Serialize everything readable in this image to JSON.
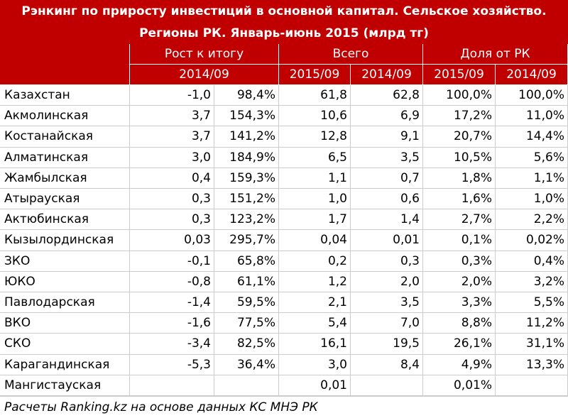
{
  "header": {
    "title_lines": [
      "Рэнкинг по приросту инвестиций в основной капитал. Сельское хозяйство.",
      "Регионы РК. Январь-июнь 2015 (млрд тг)"
    ],
    "groups": [
      "Рост к итогу",
      "Всего",
      "Доля от РК"
    ],
    "periods": [
      "2014/09",
      "2015/09",
      "2014/09",
      "2015/09",
      "2014/09"
    ]
  },
  "table": {
    "rows": [
      [
        "Казахстан",
        "-1,0",
        "98,4%",
        "61,8",
        "62,8",
        "100,0%",
        "100,0%"
      ],
      [
        "Акмолинская",
        "3,7",
        "154,3%",
        "10,6",
        "6,9",
        "17,2%",
        "11,0%"
      ],
      [
        "Костанайская",
        "3,7",
        "141,2%",
        "12,8",
        "9,1",
        "20,7%",
        "14,4%"
      ],
      [
        "Алматинская",
        "3,0",
        "184,9%",
        "6,5",
        "3,5",
        "10,5%",
        "5,6%"
      ],
      [
        "Жамбылская",
        "0,4",
        "159,3%",
        "1,1",
        "0,7",
        "1,8%",
        "1,1%"
      ],
      [
        "Атырауская",
        "0,3",
        "151,2%",
        "1,0",
        "0,6",
        "1,6%",
        "1,0%"
      ],
      [
        "Актюбинская",
        "0,3",
        "123,2%",
        "1,7",
        "1,4",
        "2,7%",
        "2,2%"
      ],
      [
        "Кызылординская",
        "0,03",
        "295,7%",
        "0,04",
        "0,01",
        "0,1%",
        "0,02%"
      ],
      [
        "ЗКО",
        "-0,1",
        "65,8%",
        "0,2",
        "0,3",
        "0,3%",
        "0,4%"
      ],
      [
        "ЮКО",
        "-0,8",
        "61,1%",
        "1,2",
        "2,0",
        "2,0%",
        "3,2%"
      ],
      [
        "Павлодарская",
        "-1,4",
        "59,5%",
        "2,1",
        "3,5",
        "3,3%",
        "5,5%"
      ],
      [
        "ВКО",
        "-1,6",
        "77,5%",
        "5,4",
        "7,0",
        "8,8%",
        "11,2%"
      ],
      [
        "СКО",
        "-3,4",
        "82,5%",
        "16,1",
        "19,5",
        "26,1%",
        "31,1%"
      ],
      [
        "Карагандинская",
        "-5,3",
        "36,4%",
        "3,0",
        "8,4",
        "4,9%",
        "13,3%"
      ],
      [
        "Мангистауская",
        null,
        null,
        "0,01",
        null,
        "0,01%",
        null
      ]
    ]
  },
  "footer": {
    "source": "Расчеты Ranking.kz на основе данных КС МНЭ РК"
  }
}
